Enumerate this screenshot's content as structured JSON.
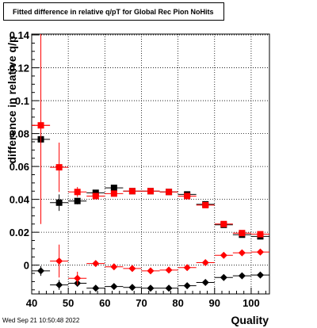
{
  "canvas": {
    "title": "Fitted difference in relative q/pT for Global Rec Pion NoHits",
    "footer": "Wed Sep 21 10:50:48 2022"
  },
  "chart_data": {
    "type": "scatter",
    "title": "Fitted difference in relative q/pT for Global Rec Pion NoHits",
    "xlabel": "Quality",
    "ylabel": "difference in relative q/p",
    "xlim": [
      40,
      105
    ],
    "ylim": [
      -0.0175,
      0.1405
    ],
    "xticks": [
      40,
      50,
      60,
      70,
      80,
      90,
      100
    ],
    "yticks": [
      0,
      0.02,
      0.04,
      0.06,
      0.08,
      0.1,
      0.12,
      0.14
    ],
    "ytick_labels": [
      "0",
      "0.02",
      "0.04",
      "0.06",
      "0.08",
      "0.1",
      "0.12",
      "0.14"
    ],
    "grid": true,
    "series": [
      {
        "marker": "square",
        "color": "#000000",
        "x": [
          42.5,
          47.5,
          52.5,
          57.5,
          62.5,
          67.5,
          72.5,
          77.5,
          82.5,
          87.5,
          92.5,
          97.5,
          102.5
        ],
        "y": [
          0.0765,
          0.038,
          0.039,
          0.044,
          0.047,
          0.045,
          0.045,
          0.0445,
          0.043,
          0.037,
          0.0245,
          0.0185,
          0.0175
        ],
        "yerr": [
          0.003,
          0.005,
          0.002,
          0.001,
          0.001,
          0.001,
          0.001,
          0.001,
          0.001,
          0.001,
          0.001,
          0.001,
          0.001
        ]
      },
      {
        "marker": "square",
        "color": "#ff0000",
        "x": [
          42.5,
          47.5,
          52.5,
          57.5,
          62.5,
          67.5,
          72.5,
          77.5,
          82.5,
          87.5,
          92.5,
          97.5,
          102.5
        ],
        "y": [
          0.085,
          0.0595,
          0.0445,
          0.042,
          0.0435,
          0.045,
          0.045,
          0.0445,
          0.042,
          0.0365,
          0.025,
          0.0195,
          0.0188
        ],
        "yerr": [
          0.06,
          0.015,
          0.003,
          0.001,
          0.001,
          0.001,
          0.001,
          0.001,
          0.001,
          0.001,
          0.001,
          0.001,
          0.001
        ]
      },
      {
        "marker": "diamond",
        "color": "#000000",
        "x": [
          42.5,
          47.5,
          52.5,
          57.5,
          62.5,
          67.5,
          72.5,
          77.5,
          82.5,
          87.5,
          92.5,
          97.5,
          102.5
        ],
        "y": [
          -0.0035,
          -0.012,
          -0.011,
          -0.014,
          -0.013,
          -0.0135,
          -0.014,
          -0.014,
          -0.0125,
          -0.0105,
          -0.0075,
          -0.0065,
          -0.006
        ],
        "yerr": [
          0.003,
          0.003,
          0.002,
          0.001,
          0.001,
          0.001,
          0.001,
          0.001,
          0.001,
          0.001,
          0.001,
          0.001,
          0.001
        ]
      },
      {
        "marker": "diamond",
        "color": "#ff0000",
        "x": [
          42.5,
          47.5,
          52.5,
          57.5,
          62.5,
          67.5,
          72.5,
          77.5,
          82.5,
          87.5,
          92.5,
          97.5,
          102.5
        ],
        "y": [
          0.085,
          0.0025,
          -0.008,
          0.001,
          -0.001,
          -0.002,
          -0.0035,
          -0.003,
          -0.0015,
          0.0015,
          0.006,
          0.0075,
          0.008
        ],
        "yerr": [
          0.003,
          0.01,
          0.004,
          0.001,
          0.001,
          0.001,
          0.001,
          0.001,
          0.001,
          0.001,
          0.001,
          0.001,
          0.001
        ]
      }
    ]
  }
}
